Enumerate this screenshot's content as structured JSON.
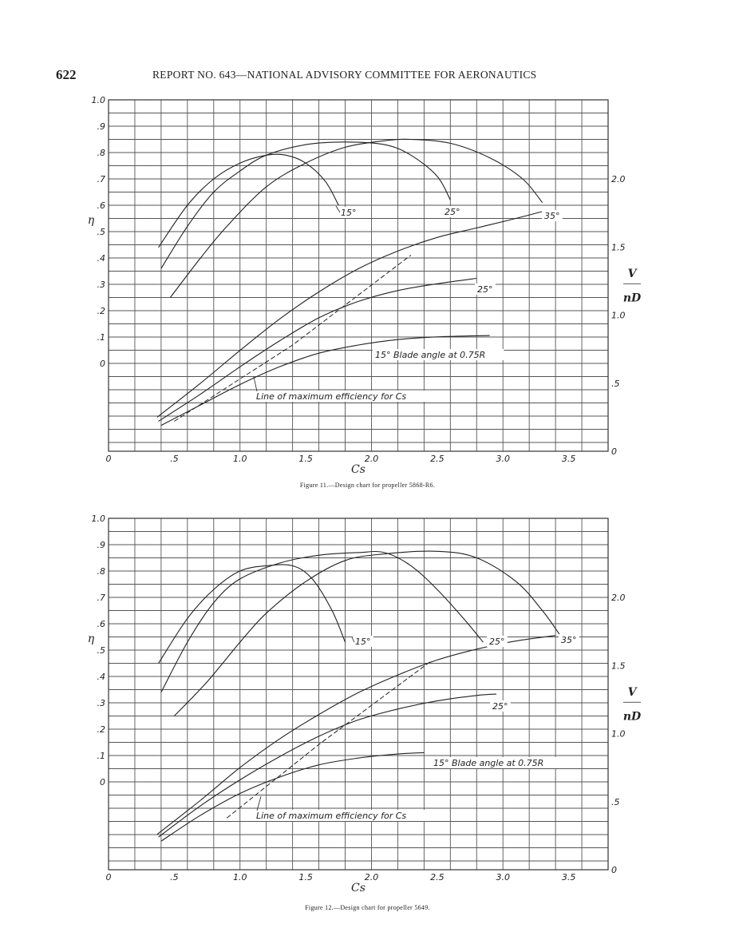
{
  "header": {
    "page_number": "622",
    "report_title": "REPORT NO. 643—NATIONAL ADVISORY COMMITTEE FOR AERONAUTICS"
  },
  "chart_data": [
    {
      "type": "line",
      "caption": "Figure 11.—Design chart for propeller 5868-R6.",
      "xlabel": "Cs",
      "y_left_label": "η",
      "y_right_label": "V/nD",
      "xlim": [
        0,
        3.8
      ],
      "x_ticks": [
        {
          "v": 0,
          "label": "0"
        },
        {
          "v": 0.5,
          "label": ".5"
        },
        {
          "v": 1.0,
          "label": "1.0"
        },
        {
          "v": 1.5,
          "label": "1.5"
        },
        {
          "v": 2.0,
          "label": "2.0"
        },
        {
          "v": 2.5,
          "label": "2.5"
        },
        {
          "v": 3.0,
          "label": "3.0"
        },
        {
          "v": 3.5,
          "label": "3.5"
        }
      ],
      "left_ticks": [
        {
          "v": 0,
          "label": "0"
        },
        {
          "v": 0.1,
          "label": ".1"
        },
        {
          "v": 0.2,
          "label": ".2"
        },
        {
          "v": 0.3,
          "label": ".3"
        },
        {
          "v": 0.4,
          "label": ".4"
        },
        {
          "v": 0.5,
          "label": ".5"
        },
        {
          "v": 0.6,
          "label": ".6"
        },
        {
          "v": 0.7,
          "label": ".7"
        },
        {
          "v": 0.8,
          "label": ".8"
        },
        {
          "v": 0.9,
          "label": ".9"
        },
        {
          "v": 1.0,
          "label": "1.0"
        }
      ],
      "right_ticks": [
        {
          "v": 0,
          "label": "0"
        },
        {
          "v": 0.5,
          "label": ".5"
        },
        {
          "v": 1.0,
          "label": "1.0"
        },
        {
          "v": 1.5,
          "label": "1.5"
        },
        {
          "v": 2.0,
          "label": "2.0"
        }
      ],
      "efficiency_series": [
        {
          "name": "15°",
          "points": [
            [
              0.38,
              0.44
            ],
            [
              0.6,
              0.6
            ],
            [
              0.8,
              0.7
            ],
            [
              1.0,
              0.76
            ],
            [
              1.2,
              0.79
            ],
            [
              1.35,
              0.79
            ],
            [
              1.5,
              0.76
            ],
            [
              1.65,
              0.69
            ],
            [
              1.75,
              0.6
            ]
          ]
        },
        {
          "name": "25°",
          "points": [
            [
              0.4,
              0.36
            ],
            [
              0.6,
              0.52
            ],
            [
              0.8,
              0.65
            ],
            [
              1.0,
              0.73
            ],
            [
              1.2,
              0.79
            ],
            [
              1.5,
              0.83
            ],
            [
              1.8,
              0.84
            ],
            [
              2.1,
              0.83
            ],
            [
              2.3,
              0.79
            ],
            [
              2.5,
              0.71
            ],
            [
              2.6,
              0.62
            ]
          ]
        },
        {
          "name": "35°",
          "points": [
            [
              0.47,
              0.25
            ],
            [
              0.7,
              0.4
            ],
            [
              0.9,
              0.52
            ],
            [
              1.2,
              0.67
            ],
            [
              1.5,
              0.76
            ],
            [
              1.8,
              0.82
            ],
            [
              2.1,
              0.845
            ],
            [
              2.3,
              0.85
            ],
            [
              2.6,
              0.835
            ],
            [
              2.9,
              0.78
            ],
            [
              3.15,
              0.7
            ],
            [
              3.3,
              0.61
            ]
          ]
        }
      ],
      "vnd_series": [
        {
          "name": "15°",
          "points": [
            [
              0.4,
              0.19
            ],
            [
              0.7,
              0.34
            ],
            [
              1.0,
              0.49
            ],
            [
              1.3,
              0.62
            ],
            [
              1.6,
              0.72
            ],
            [
              1.9,
              0.78
            ],
            [
              2.2,
              0.82
            ],
            [
              2.5,
              0.84
            ],
            [
              2.9,
              0.85
            ]
          ]
        },
        {
          "name": "25°",
          "points": [
            [
              0.38,
              0.22
            ],
            [
              0.7,
              0.42
            ],
            [
              1.0,
              0.62
            ],
            [
              1.3,
              0.81
            ],
            [
              1.6,
              0.98
            ],
            [
              1.9,
              1.1
            ],
            [
              2.2,
              1.18
            ],
            [
              2.5,
              1.23
            ],
            [
              2.8,
              1.27
            ]
          ]
        },
        {
          "name": "35°",
          "points": [
            [
              0.37,
              0.25
            ],
            [
              0.7,
              0.5
            ],
            [
              1.0,
              0.74
            ],
            [
              1.3,
              0.97
            ],
            [
              1.6,
              1.17
            ],
            [
              1.9,
              1.34
            ],
            [
              2.2,
              1.47
            ],
            [
              2.5,
              1.57
            ],
            [
              2.8,
              1.64
            ],
            [
              3.1,
              1.71
            ],
            [
              3.3,
              1.76
            ]
          ]
        }
      ],
      "max_efficiency_line": [
        [
          0.5,
          0.22
        ],
        [
          1.4,
          0.78
        ],
        [
          2.3,
          1.44
        ]
      ],
      "annotations": {
        "eff_15": "15°",
        "eff_25": "25°",
        "eff_35": "35°",
        "vnd_25": "25°",
        "blade_angle": "15° Blade angle at 0.75R",
        "max_eff": "Line of maximum efficiency for Cs"
      }
    },
    {
      "type": "line",
      "caption": "Figure 12.—Design chart for propeller 5649.",
      "xlabel": "Cs",
      "y_left_label": "η",
      "y_right_label": "V/nD",
      "xlim": [
        0,
        3.8
      ],
      "x_ticks": [
        {
          "v": 0,
          "label": "0"
        },
        {
          "v": 0.5,
          "label": ".5"
        },
        {
          "v": 1.0,
          "label": "1.0"
        },
        {
          "v": 1.5,
          "label": "1.5"
        },
        {
          "v": 2.0,
          "label": "2.0"
        },
        {
          "v": 2.5,
          "label": "2.5"
        },
        {
          "v": 3.0,
          "label": "3.0"
        },
        {
          "v": 3.5,
          "label": "3.5"
        }
      ],
      "left_ticks": [
        {
          "v": 0,
          "label": "0"
        },
        {
          "v": 0.1,
          "label": ".1"
        },
        {
          "v": 0.2,
          "label": ".2"
        },
        {
          "v": 0.3,
          "label": ".3"
        },
        {
          "v": 0.4,
          "label": ".4"
        },
        {
          "v": 0.5,
          "label": ".5"
        },
        {
          "v": 0.6,
          "label": ".6"
        },
        {
          "v": 0.7,
          "label": ".7"
        },
        {
          "v": 0.8,
          "label": ".8"
        },
        {
          "v": 0.9,
          "label": ".9"
        },
        {
          "v": 1.0,
          "label": "1.0"
        }
      ],
      "right_ticks": [
        {
          "v": 0,
          "label": "0"
        },
        {
          "v": 0.5,
          "label": ".5"
        },
        {
          "v": 1.0,
          "label": "1.0"
        },
        {
          "v": 1.5,
          "label": "1.5"
        },
        {
          "v": 2.0,
          "label": "2.0"
        }
      ],
      "efficiency_series": [
        {
          "name": "15°",
          "points": [
            [
              0.38,
              0.45
            ],
            [
              0.6,
              0.62
            ],
            [
              0.8,
              0.73
            ],
            [
              1.0,
              0.8
            ],
            [
              1.2,
              0.82
            ],
            [
              1.4,
              0.82
            ],
            [
              1.55,
              0.77
            ],
            [
              1.7,
              0.65
            ],
            [
              1.8,
              0.53
            ]
          ]
        },
        {
          "name": "25°",
          "points": [
            [
              0.4,
              0.34
            ],
            [
              0.6,
              0.53
            ],
            [
              0.8,
              0.68
            ],
            [
              1.0,
              0.77
            ],
            [
              1.3,
              0.83
            ],
            [
              1.6,
              0.86
            ],
            [
              1.9,
              0.87
            ],
            [
              2.1,
              0.87
            ],
            [
              2.3,
              0.82
            ],
            [
              2.5,
              0.73
            ],
            [
              2.7,
              0.62
            ],
            [
              2.85,
              0.53
            ]
          ]
        },
        {
          "name": "35°",
          "points": [
            [
              0.5,
              0.25
            ],
            [
              0.75,
              0.38
            ],
            [
              1.0,
              0.53
            ],
            [
              1.2,
              0.64
            ],
            [
              1.5,
              0.76
            ],
            [
              1.8,
              0.84
            ],
            [
              2.1,
              0.865
            ],
            [
              2.5,
              0.875
            ],
            [
              2.8,
              0.85
            ],
            [
              3.1,
              0.76
            ],
            [
              3.3,
              0.65
            ],
            [
              3.43,
              0.56
            ]
          ]
        }
      ],
      "vnd_series": [
        {
          "name": "15°",
          "points": [
            [
              0.4,
              0.21
            ],
            [
              0.7,
              0.4
            ],
            [
              1.0,
              0.56
            ],
            [
              1.3,
              0.68
            ],
            [
              1.6,
              0.77
            ],
            [
              1.9,
              0.82
            ],
            [
              2.2,
              0.85
            ],
            [
              2.4,
              0.86
            ]
          ]
        },
        {
          "name": "25°",
          "points": [
            [
              0.38,
              0.24
            ],
            [
              0.7,
              0.47
            ],
            [
              1.0,
              0.66
            ],
            [
              1.3,
              0.83
            ],
            [
              1.6,
              0.98
            ],
            [
              1.9,
              1.1
            ],
            [
              2.2,
              1.18
            ],
            [
              2.5,
              1.24
            ],
            [
              2.8,
              1.28
            ],
            [
              2.95,
              1.29
            ]
          ]
        },
        {
          "name": "35°",
          "points": [
            [
              0.37,
              0.26
            ],
            [
              0.7,
              0.51
            ],
            [
              1.0,
              0.75
            ],
            [
              1.3,
              0.96
            ],
            [
              1.6,
              1.14
            ],
            [
              1.9,
              1.3
            ],
            [
              2.2,
              1.43
            ],
            [
              2.5,
              1.54
            ],
            [
              2.8,
              1.62
            ],
            [
              3.1,
              1.68
            ],
            [
              3.4,
              1.72
            ]
          ]
        }
      ],
      "max_efficiency_line": [
        [
          0.9,
          0.38
        ],
        [
          1.6,
          0.92
        ],
        [
          2.45,
          1.53
        ]
      ],
      "annotations": {
        "eff_15": "15°",
        "eff_25": "25°",
        "eff_35": "35°",
        "vnd_25": "25°",
        "blade_angle": "15° Blade angle at 0.75R",
        "max_eff": "Line of maximum efficiency for Cs"
      }
    }
  ]
}
